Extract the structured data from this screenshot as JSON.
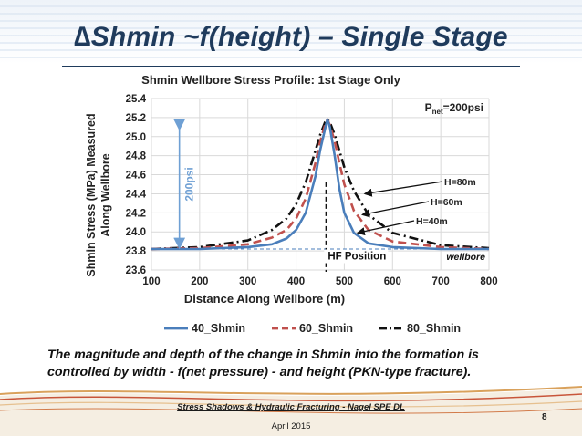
{
  "slide": {
    "title": "∆Shmin ~f(height) – Single Stage",
    "caption": "The magnitude and depth of the change in Shmin into the formation is controlled by width - f(net pressure) - and height (PKN-type fracture).",
    "footer_source": "Stress Shadows & Hydraulic Fracturing - Nagel SPE DL",
    "footer_date": "April 2015",
    "page_number": "8"
  },
  "chart_data": {
    "type": "line",
    "title": "Shmin Wellbore Stress Profile: 1st Stage Only",
    "xlabel": "Distance Along Wellbore (m)",
    "ylabel_line1": "Shmin Stress (MPa) Measured",
    "ylabel_line2": "Along Wellbore",
    "xlim": [
      100,
      800
    ],
    "ylim": [
      23.6,
      25.4
    ],
    "x_ticks": [
      "100",
      "200",
      "300",
      "400",
      "500",
      "600",
      "700",
      "800"
    ],
    "y_ticks": [
      "25.4",
      "25.2",
      "25.0",
      "24.8",
      "24.6",
      "24.4",
      "24.2",
      "24.0",
      "23.8",
      "23.6"
    ],
    "grid": true,
    "legend_position": "bottom",
    "series": [
      {
        "name": "40_Shmin",
        "color": "#4a7ebb",
        "dash": "solid",
        "x": [
          100,
          200,
          300,
          350,
          380,
          400,
          420,
          440,
          450,
          460,
          465,
          470,
          480,
          490,
          500,
          520,
          550,
          600,
          700,
          800
        ],
        "y": [
          23.82,
          23.82,
          23.84,
          23.87,
          23.93,
          24.02,
          24.2,
          24.58,
          24.86,
          25.08,
          25.18,
          25.1,
          24.8,
          24.45,
          24.2,
          23.99,
          23.88,
          23.84,
          23.82,
          23.82
        ]
      },
      {
        "name": "60_Shmin",
        "color": "#c0504d",
        "dash": "dash",
        "x": [
          100,
          200,
          300,
          350,
          380,
          400,
          420,
          440,
          450,
          460,
          465,
          470,
          480,
          490,
          500,
          520,
          550,
          600,
          700,
          800
        ],
        "y": [
          23.82,
          23.83,
          23.87,
          23.94,
          24.02,
          24.14,
          24.35,
          24.72,
          24.95,
          25.12,
          25.18,
          25.12,
          24.95,
          24.72,
          24.5,
          24.22,
          24.02,
          23.9,
          23.84,
          23.82
        ]
      },
      {
        "name": "80_Shmin",
        "color": "#111111",
        "dash": "dashdot",
        "x": [
          100,
          200,
          300,
          350,
          380,
          400,
          420,
          440,
          450,
          460,
          465,
          470,
          480,
          490,
          500,
          520,
          550,
          600,
          700,
          800
        ],
        "y": [
          23.82,
          23.84,
          23.91,
          24.02,
          24.14,
          24.29,
          24.52,
          24.85,
          25.02,
          25.15,
          25.18,
          25.15,
          25.02,
          24.85,
          24.68,
          24.43,
          24.18,
          23.99,
          23.86,
          23.83
        ]
      }
    ],
    "annotations": {
      "pnet": "P",
      "pnet_sub": "net",
      "pnet_value": "=200psi",
      "arrow_label": "200psi",
      "hf_position": "HF Position",
      "wellbore": "wellbore",
      "h80": "H=80m",
      "h60": "H=60m",
      "h40": "H=40m"
    },
    "arrow_range": [
      23.82,
      25.18
    ],
    "hf_x": 462,
    "baseline": 23.82
  }
}
